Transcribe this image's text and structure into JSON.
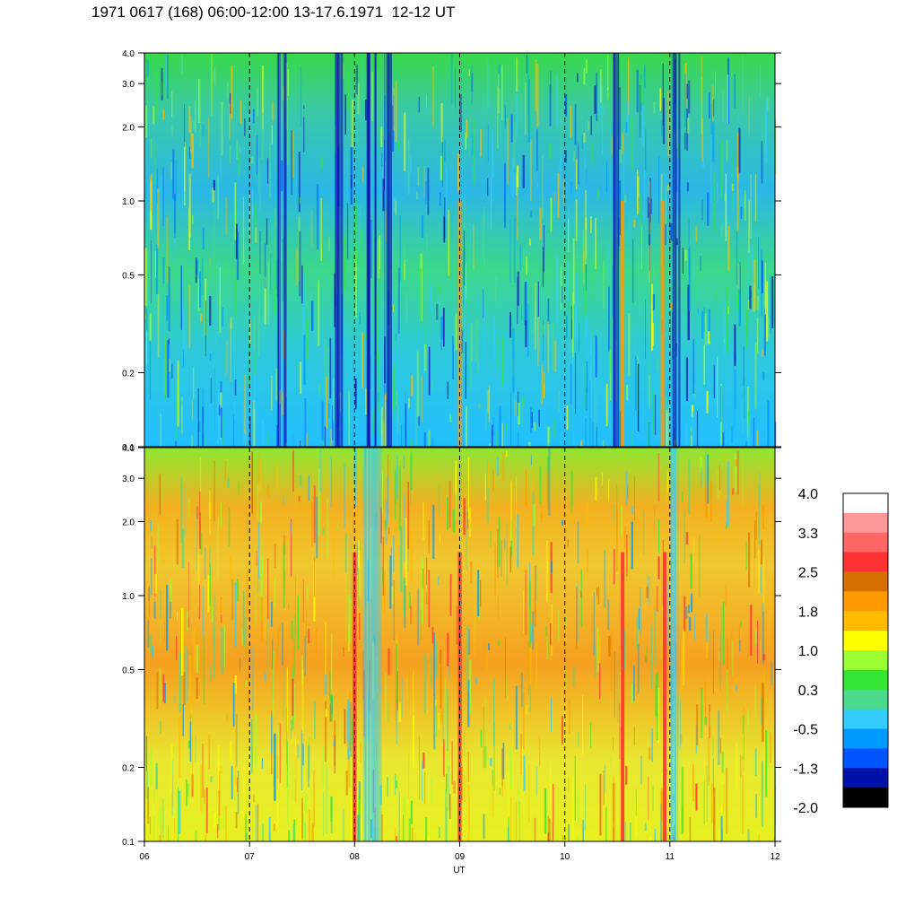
{
  "title": "1971 0617 (168) 06:00-12:00 13-17.6.1971  12-12 UT",
  "chart_data": [
    {
      "type": "heatmap",
      "panel": "upper",
      "y_scale": "log",
      "ylim": [
        0.1,
        4.0
      ],
      "xlim": [
        6,
        12
      ],
      "y_tick_labels": [
        "4.0",
        "3.0",
        "2.0",
        "1.0",
        "0.5",
        "0.2",
        "0.1"
      ],
      "y_tick_values": [
        4.0,
        3.0,
        2.0,
        1.0,
        0.5,
        0.2,
        0.1
      ],
      "x_tick_labels": [
        "06",
        "07",
        "08",
        "09",
        "10",
        "11",
        "12"
      ],
      "x_tick_values": [
        6,
        7,
        8,
        9,
        10,
        11,
        12
      ],
      "xlabel": "",
      "hour_markers": [
        7,
        8,
        9,
        10,
        11
      ],
      "bright_streaks": [
        9.0,
        10.55,
        10.93
      ],
      "dark_streaks": [
        7.3,
        7.85,
        8.15,
        8.3,
        10.5,
        11.05
      ],
      "typical_level_range": [
        -1.3,
        1.0
      ]
    },
    {
      "type": "heatmap",
      "panel": "lower",
      "y_scale": "log",
      "ylim": [
        0.1,
        4.0
      ],
      "xlim": [
        6,
        12
      ],
      "y_tick_labels": [
        "4.0",
        "3.0",
        "2.0",
        "1.0",
        "0.5",
        "0.2",
        "0.1"
      ],
      "y_tick_values": [
        4.0,
        3.0,
        2.0,
        1.0,
        0.5,
        0.2,
        0.1
      ],
      "x_tick_labels": [
        "06",
        "07",
        "08",
        "09",
        "10",
        "11",
        "12"
      ],
      "x_tick_values": [
        6,
        7,
        8,
        9,
        10,
        11,
        12
      ],
      "xlabel": "UT",
      "hour_markers": [
        7,
        8,
        9,
        10,
        11
      ],
      "bright_streaks": [
        8.0,
        9.0,
        10.55,
        10.95
      ],
      "dark_streaks": [
        8.1,
        8.2,
        11.05
      ],
      "typical_level_range": [
        0.3,
        2.5
      ]
    }
  ],
  "colorbar": {
    "labels": [
      "4.0",
      "3.3",
      "2.5",
      "1.8",
      "1.0",
      "0.3",
      "-0.5",
      "-1.3",
      "-2.0"
    ],
    "colors_top_to_bottom": [
      "#ffffff",
      "#ff9999",
      "#ff6666",
      "#ff3333",
      "#d77000",
      "#ff9900",
      "#ffbb00",
      "#ffff00",
      "#99ff33",
      "#33e633",
      "#4dd98c",
      "#33ccff",
      "#0099ff",
      "#0055ff",
      "#0011aa",
      "#000000"
    ]
  }
}
